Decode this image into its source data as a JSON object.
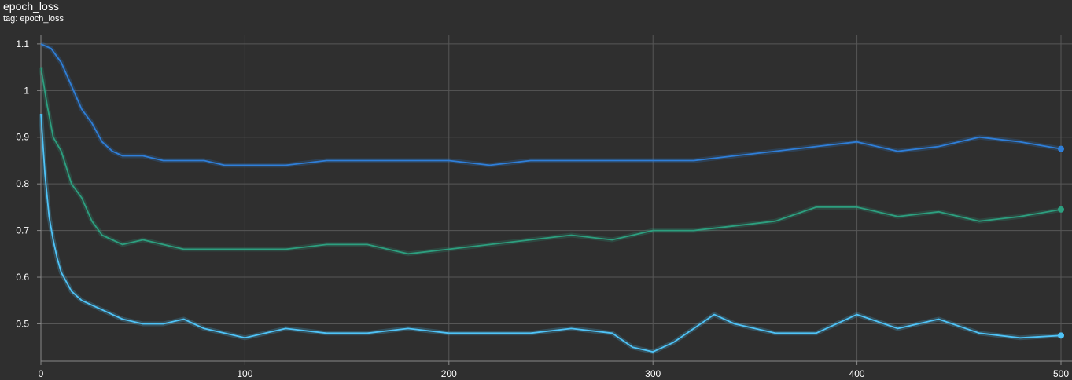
{
  "header": {
    "title": "epoch_loss",
    "subtitle": "tag: epoch_loss"
  },
  "chart_data": {
    "type": "line",
    "title": "epoch_loss",
    "subtitle": "tag: epoch_loss",
    "xlabel": "",
    "ylabel": "",
    "xlim": [
      0,
      500
    ],
    "ylim": [
      0.42,
      1.12
    ],
    "xticks": [
      0,
      100,
      200,
      300,
      400,
      500
    ],
    "yticks": [
      0.5,
      0.6,
      0.7,
      0.8,
      0.9,
      1,
      1.1
    ],
    "ytick_labels": [
      "0.5",
      "0.6",
      "0.7",
      "0.8",
      "0.9",
      "1",
      "1.1"
    ],
    "grid": true,
    "legend": "none",
    "series": [
      {
        "color": "#2f7ed8",
        "x": [
          0,
          5,
          10,
          15,
          20,
          25,
          30,
          35,
          40,
          50,
          60,
          70,
          80,
          90,
          100,
          120,
          140,
          160,
          180,
          200,
          220,
          240,
          260,
          280,
          300,
          320,
          340,
          360,
          380,
          400,
          420,
          440,
          460,
          480,
          500
        ],
        "y": [
          1.1,
          1.09,
          1.06,
          1.01,
          0.96,
          0.93,
          0.89,
          0.87,
          0.86,
          0.86,
          0.85,
          0.85,
          0.85,
          0.84,
          0.84,
          0.84,
          0.85,
          0.85,
          0.85,
          0.85,
          0.84,
          0.85,
          0.85,
          0.85,
          0.85,
          0.85,
          0.86,
          0.87,
          0.88,
          0.89,
          0.87,
          0.88,
          0.9,
          0.89,
          0.875
        ]
      },
      {
        "color": "#2d9f7f",
        "x": [
          0,
          3,
          6,
          10,
          15,
          20,
          25,
          30,
          35,
          40,
          50,
          60,
          70,
          80,
          90,
          100,
          120,
          140,
          160,
          180,
          200,
          220,
          240,
          260,
          280,
          300,
          320,
          340,
          360,
          380,
          400,
          420,
          440,
          460,
          480,
          500
        ],
        "y": [
          1.05,
          0.97,
          0.9,
          0.87,
          0.8,
          0.77,
          0.72,
          0.69,
          0.68,
          0.67,
          0.68,
          0.67,
          0.66,
          0.66,
          0.66,
          0.66,
          0.66,
          0.67,
          0.67,
          0.65,
          0.66,
          0.67,
          0.68,
          0.69,
          0.68,
          0.7,
          0.7,
          0.71,
          0.72,
          0.75,
          0.75,
          0.73,
          0.74,
          0.72,
          0.73,
          0.745
        ]
      },
      {
        "color": "#4fc3f7",
        "x": [
          0,
          2,
          4,
          6,
          8,
          10,
          15,
          20,
          25,
          30,
          35,
          40,
          50,
          60,
          70,
          80,
          90,
          100,
          110,
          120,
          140,
          160,
          180,
          200,
          220,
          240,
          260,
          280,
          290,
          300,
          310,
          320,
          330,
          340,
          360,
          380,
          400,
          420,
          440,
          460,
          480,
          500
        ],
        "y": [
          0.95,
          0.82,
          0.73,
          0.68,
          0.64,
          0.61,
          0.57,
          0.55,
          0.54,
          0.53,
          0.52,
          0.51,
          0.5,
          0.5,
          0.51,
          0.49,
          0.48,
          0.47,
          0.48,
          0.49,
          0.48,
          0.48,
          0.49,
          0.48,
          0.48,
          0.48,
          0.49,
          0.48,
          0.45,
          0.44,
          0.46,
          0.49,
          0.52,
          0.5,
          0.48,
          0.48,
          0.52,
          0.49,
          0.51,
          0.48,
          0.47,
          0.475
        ]
      }
    ]
  }
}
